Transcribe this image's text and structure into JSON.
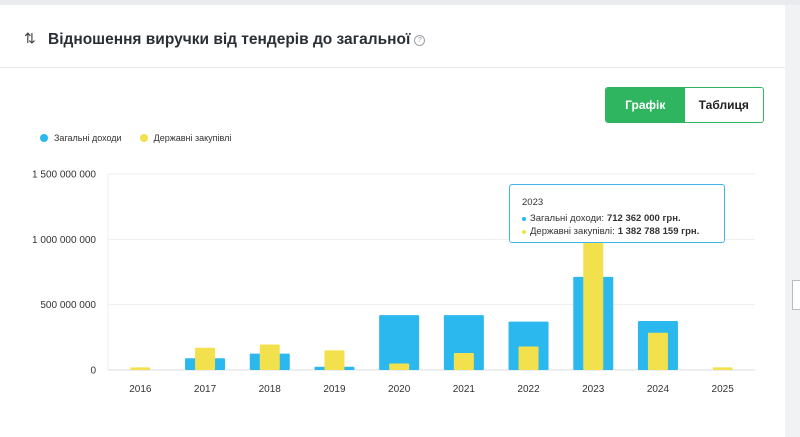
{
  "header": {
    "title": "Відношення виручки від тендерів до загальної"
  },
  "toggle": {
    "chart_label": "Графік",
    "table_label": "Таблиця"
  },
  "colors": {
    "total": "#2bb8ee",
    "state": "#f3e04d",
    "accent": "#2fb560"
  },
  "tooltip": {
    "year": "2023",
    "total_label": "Загальні доходи:",
    "total_value": "712 362 000 грн.",
    "state_label": "Державні закупівлі:",
    "state_value": "1 382 788 159 грн."
  },
  "chart_data": {
    "type": "bar",
    "categories": [
      "2016",
      "2017",
      "2018",
      "2019",
      "2020",
      "2021",
      "2022",
      "2023",
      "2024",
      "2025"
    ],
    "series": [
      {
        "name": "Загальні доходи",
        "values": [
          0,
          90000000,
          125000000,
          25000000,
          420000000,
          420000000,
          370000000,
          712362000,
          375000000,
          0
        ]
      },
      {
        "name": "Державні закупівлі",
        "values": [
          20000000,
          170000000,
          195000000,
          150000000,
          50000000,
          130000000,
          180000000,
          1382788159,
          285000000,
          20000000
        ]
      }
    ],
    "yticks": [
      "0",
      "500 000 000",
      "1 000 000 000",
      "1 500 000 000"
    ],
    "ytick_values": [
      0,
      500000000,
      1000000000,
      1500000000
    ],
    "ylim": [
      0,
      1500000000
    ],
    "legend_position": "top-left",
    "grid": true
  }
}
